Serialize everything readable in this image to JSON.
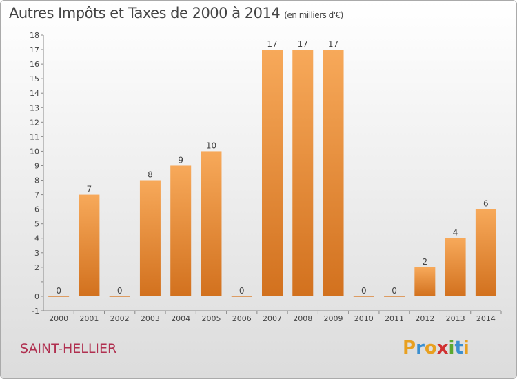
{
  "title": "Autres Impôts et Taxes de 2000 à 2014",
  "unit": "(en milliers d'€)",
  "place": "SAINT-HELLIER",
  "logo": {
    "letters": [
      "P",
      "r",
      "o",
      "x",
      "i",
      "t",
      "i"
    ],
    "colors": [
      "#e8a020",
      "#3a8fd0",
      "#e8a020",
      "#d03030",
      "#5aa830",
      "#3a8fd0",
      "#e8a020"
    ]
  },
  "colors": {
    "bar_top": "#f7a95a",
    "bar_bottom": "#d2711e",
    "axis": "#888888",
    "title": "#444444",
    "place": "#b03050"
  },
  "chart_data": {
    "type": "bar",
    "title": "Autres Impôts et Taxes de 2000 à 2014",
    "subtitle": "(en milliers d'€)",
    "categories": [
      "2000",
      "2001",
      "2002",
      "2003",
      "2004",
      "2005",
      "2006",
      "2007",
      "2008",
      "2009",
      "2010",
      "2011",
      "2012",
      "2013",
      "2014"
    ],
    "values": [
      0,
      7,
      0,
      8,
      9,
      10,
      0,
      17,
      17,
      17,
      0,
      0,
      2,
      4,
      6
    ],
    "ylim": [
      -1,
      18
    ],
    "yticks": [
      -1,
      0,
      1,
      2,
      3,
      4,
      5,
      6,
      7,
      8,
      9,
      10,
      11,
      12,
      13,
      14,
      15,
      16,
      17,
      18
    ],
    "ytick_labels": [
      "-1",
      "0",
      "",
      "2",
      "3",
      "4",
      "5",
      "6",
      "7",
      "8",
      "9",
      "10",
      "11",
      "12",
      "13",
      "14",
      "15",
      "16",
      "17",
      "18"
    ],
    "xlabel": "",
    "ylabel": "",
    "grid": false,
    "legend": "none"
  }
}
